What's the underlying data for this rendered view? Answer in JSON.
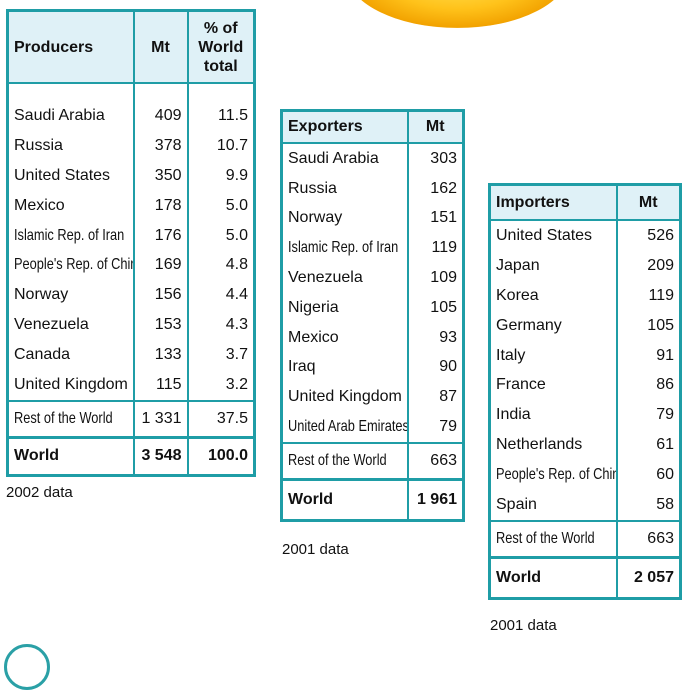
{
  "producers": {
    "headers": [
      "Producers",
      "Mt",
      "% of\nWorld\ntotal"
    ],
    "rows": [
      {
        "name": "Saudi Arabia",
        "mt": "409",
        "pct": "11.5"
      },
      {
        "name": "Russia",
        "mt": "378",
        "pct": "10.7"
      },
      {
        "name": "United States",
        "mt": "350",
        "pct": "9.9"
      },
      {
        "name": "Mexico",
        "mt": "178",
        "pct": "5.0"
      },
      {
        "name": "Islamic Rep. of Iran",
        "mt": "176",
        "pct": "5.0"
      },
      {
        "name": "People's Rep. of China",
        "mt": "169",
        "pct": "4.8"
      },
      {
        "name": "Norway",
        "mt": "156",
        "pct": "4.4"
      },
      {
        "name": "Venezuela",
        "mt": "153",
        "pct": "4.3"
      },
      {
        "name": "Canada",
        "mt": "133",
        "pct": "3.7"
      },
      {
        "name": "United Kingdom",
        "mt": "115",
        "pct": "3.2"
      }
    ],
    "rest": {
      "name": "Rest of the World",
      "mt": "1 331",
      "pct": "37.5"
    },
    "world": {
      "name": "World",
      "mt": "3 548",
      "pct": "100.0"
    },
    "caption": "2002 data"
  },
  "exporters": {
    "headers": [
      "Exporters",
      "Mt"
    ],
    "rows": [
      {
        "name": "Saudi Arabia",
        "mt": "303"
      },
      {
        "name": "Russia",
        "mt": "162"
      },
      {
        "name": "Norway",
        "mt": "151"
      },
      {
        "name": "Islamic Rep. of Iran",
        "mt": "119"
      },
      {
        "name": "Venezuela",
        "mt": "109"
      },
      {
        "name": "Nigeria",
        "mt": "105"
      },
      {
        "name": "Mexico",
        "mt": "93"
      },
      {
        "name": "Iraq",
        "mt": "90"
      },
      {
        "name": "United Kingdom",
        "mt": "87"
      },
      {
        "name": "United Arab Emirates",
        "mt": "79"
      }
    ],
    "rest": {
      "name": "Rest of the World",
      "mt": "663"
    },
    "world": {
      "name": "World",
      "mt": "1 961"
    },
    "caption": "2001 data"
  },
  "importers": {
    "headers": [
      "Importers",
      "Mt"
    ],
    "rows": [
      {
        "name": "United States",
        "mt": "526"
      },
      {
        "name": "Japan",
        "mt": "209"
      },
      {
        "name": "Korea",
        "mt": "119"
      },
      {
        "name": "Germany",
        "mt": "105"
      },
      {
        "name": "Italy",
        "mt": "91"
      },
      {
        "name": "France",
        "mt": "86"
      },
      {
        "name": "India",
        "mt": "79"
      },
      {
        "name": "Netherlands",
        "mt": "61"
      },
      {
        "name": "People's Rep. of China",
        "mt": "60"
      },
      {
        "name": "Spain",
        "mt": "58"
      }
    ],
    "rest": {
      "name": "Rest of the World",
      "mt": "663"
    },
    "world": {
      "name": "World",
      "mt": "2 057"
    },
    "caption": "2001 data"
  },
  "colors": {
    "border": "#1f9da6",
    "header_bg": "#dff1f7",
    "accent": "#ffc21a"
  }
}
